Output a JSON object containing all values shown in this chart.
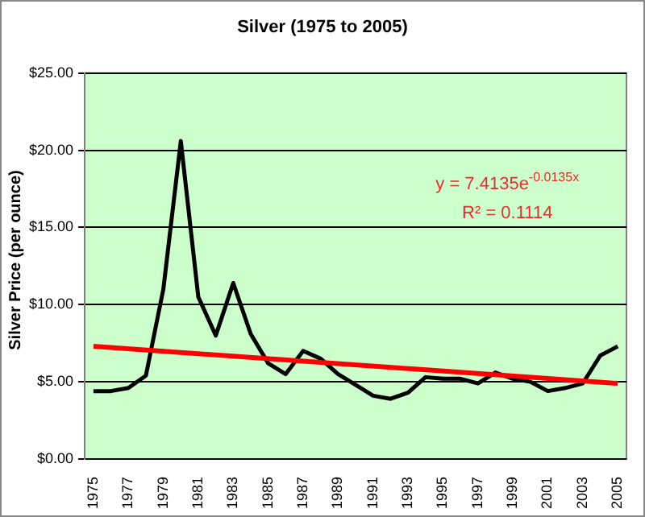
{
  "chart_data": {
    "type": "line",
    "title": "Silver (1975 to 2005)",
    "ylabel": "Silver Price (per ounce)",
    "categories": [
      "1975",
      null,
      "1977",
      null,
      "1979",
      null,
      "1981",
      null,
      "1983",
      null,
      "1985",
      null,
      "1987",
      null,
      "1989",
      null,
      "1991",
      null,
      "1993",
      null,
      "1995",
      null,
      "1997",
      null,
      "1999",
      null,
      "2001",
      null,
      "2003",
      null,
      "2005"
    ],
    "series": [
      {
        "color": "#000000",
        "values": [
          4.4,
          4.4,
          4.6,
          5.4,
          11.0,
          20.6,
          10.5,
          8.0,
          11.4,
          8.1,
          6.2,
          5.5,
          7.0,
          6.5,
          5.5,
          4.8,
          4.1,
          3.9,
          4.3,
          5.3,
          5.2,
          5.2,
          4.9,
          5.6,
          5.2,
          5.0,
          4.4,
          4.6,
          4.9,
          6.7,
          7.3
        ]
      },
      {
        "type": "line",
        "color": "#ff0000",
        "values": [
          7.3,
          null,
          null,
          null,
          null,
          null,
          null,
          null,
          null,
          null,
          null,
          null,
          null,
          null,
          null,
          null,
          null,
          null,
          null,
          null,
          null,
          null,
          null,
          null,
          null,
          null,
          null,
          null,
          null,
          null,
          4.9
        ]
      }
    ],
    "ylim": [
      0,
      25
    ],
    "yticks": [
      {
        "value": 0,
        "label": "$0.00"
      },
      {
        "value": 5,
        "label": "$5.00"
      },
      {
        "value": 10,
        "label": "$10.00"
      },
      {
        "value": 15,
        "label": "$15.00"
      },
      {
        "value": 20,
        "label": "$20.00"
      },
      {
        "value": 25,
        "label": "$25.00"
      }
    ],
    "grid": "y",
    "legend": false,
    "marker": "none",
    "line_style": "solid",
    "annotations": [
      "y = 7.4135e$^{-0.0135x}$",
      "R² = 0.1114"
    ]
  }
}
